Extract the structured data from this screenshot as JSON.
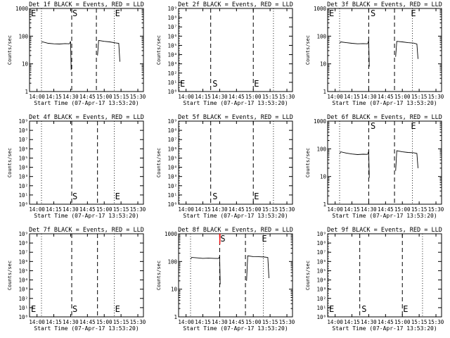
{
  "colors": {
    "events": "#000000",
    "lld": "#ff0000",
    "background": "#ffffff"
  },
  "chart_data": [
    {
      "type": "line",
      "title": "Det 1f BLACK = Events, RED = LLD",
      "xlabel": "Start Time (07-Apr-17 13:53:20)",
      "ylabel": "Counts/sec",
      "xlim": [
        "13:53:20",
        "15:35:00"
      ],
      "x_ticks": [
        "14:00",
        "14:15",
        "14:30",
        "14:45",
        "15:00",
        "15:15",
        "15:30"
      ],
      "scale": "log",
      "ylim": [
        1,
        1000
      ],
      "y_ticks": [
        "1",
        "10",
        "100",
        "1000"
      ],
      "dotted_lines": [
        "14:04",
        "15:09"
      ],
      "dashed_lines": [
        "14:31",
        "14:53"
      ],
      "markers": [
        {
          "label": "E",
          "time": "13:54",
          "level": 0.95
        },
        {
          "label": "S",
          "time": "14:31",
          "level": 0.95
        },
        {
          "label": "E",
          "time": "15:09",
          "level": 0.95
        }
      ],
      "series": [
        {
          "type": "events",
          "segments": [
            [
              [
                "14:04",
                60
              ],
              [
                "14:05",
                62
              ],
              [
                "14:10",
                55
              ],
              [
                "14:15",
                53
              ],
              [
                "14:20",
                52
              ],
              [
                "14:25",
                54
              ],
              [
                "14:29",
                53
              ],
              [
                "14:30",
                65
              ],
              [
                "14:30:30",
                6
              ]
            ],
            [
              [
                "14:54",
                20
              ],
              [
                "14:55",
                70
              ],
              [
                "15:00",
                65
              ],
              [
                "15:05",
                62
              ],
              [
                "15:10",
                57
              ],
              [
                "15:13",
                55
              ],
              [
                "15:14",
                12
              ]
            ]
          ]
        }
      ]
    },
    {
      "type": "line",
      "title": "Det 2f BLACK = Events, RED = LLD",
      "xlabel": "Start Time (07-Apr-17 13:53:20)",
      "ylabel": "Counts/sec",
      "xlim": [
        "13:53:20",
        "15:35:00"
      ],
      "x_ticks": [
        "14:00",
        "14:15",
        "14:30",
        "14:45",
        "15:00",
        "15:15",
        "15:30"
      ],
      "scale": "log",
      "ylim": [
        1,
        1000000000
      ],
      "y_ticks": [
        "10⁰",
        "10¹",
        "10²",
        "10³",
        "10⁴",
        "10⁵",
        "10⁶",
        "10⁷",
        "10⁸",
        "10⁹"
      ],
      "dotted_lines": [
        "13:54",
        "15:18"
      ],
      "dashed_lines": [
        "14:22",
        "15:00"
      ],
      "markers": [
        {
          "label": "E",
          "time": "13:54",
          "level": 0.1
        },
        {
          "label": "S",
          "time": "14:23",
          "level": 0.1
        },
        {
          "label": "E",
          "time": "15:00",
          "level": 0.1
        }
      ],
      "series": []
    },
    {
      "type": "line",
      "title": "Det 3f BLACK = Events, RED = LLD",
      "xlabel": "Start Time (07-Apr-17 13:53:20)",
      "ylabel": "Counts/sec",
      "xlim": [
        "13:53:20",
        "15:35:00"
      ],
      "x_ticks": [
        "14:00",
        "14:15",
        "14:30",
        "14:45",
        "15:00",
        "15:15",
        "15:30"
      ],
      "scale": "log",
      "ylim": [
        1,
        1000
      ],
      "y_ticks": [
        "1",
        "10",
        "100",
        "1000"
      ],
      "dotted_lines": [
        "14:04",
        "15:09"
      ],
      "dashed_lines": [
        "14:30",
        "14:53"
      ],
      "markers": [
        {
          "label": "E",
          "time": "13:54",
          "level": 0.95
        },
        {
          "label": "S",
          "time": "14:31",
          "level": 0.95
        },
        {
          "label": "E",
          "time": "15:07",
          "level": 0.95
        }
      ],
      "series": [
        {
          "type": "events",
          "segments": [
            [
              [
                "14:04",
                55
              ],
              [
                "14:05",
                62
              ],
              [
                "14:10",
                58
              ],
              [
                "14:15",
                55
              ],
              [
                "14:20",
                53
              ],
              [
                "14:25",
                54
              ],
              [
                "14:29",
                53
              ],
              [
                "14:30",
                68
              ],
              [
                "14:30:30",
                8
              ]
            ],
            [
              [
                "14:54",
                18
              ],
              [
                "14:55",
                65
              ],
              [
                "15:00",
                62
              ],
              [
                "15:05",
                58
              ],
              [
                "15:10",
                56
              ],
              [
                "15:13",
                52
              ],
              [
                "15:14",
                15
              ]
            ]
          ]
        }
      ]
    },
    {
      "type": "line",
      "title": "Det 4f BLACK = Events, RED = LLD",
      "xlabel": "Start Time (07-Apr-17 13:53:20)",
      "ylabel": "Counts/sec",
      "xlim": [
        "13:53:20",
        "15:35:00"
      ],
      "x_ticks": [
        "14:00",
        "14:15",
        "14:30",
        "14:45",
        "15:00",
        "15:15",
        "15:30"
      ],
      "scale": "log",
      "ylim": [
        1,
        1000000000
      ],
      "y_ticks": [
        "10⁰",
        "10¹",
        "10²",
        "10³",
        "10⁴",
        "10⁵",
        "10⁶",
        "10⁷",
        "10⁸",
        "10⁹"
      ],
      "dotted_lines": [
        "14:04",
        "15:09"
      ],
      "dashed_lines": [
        "14:31",
        "14:54"
      ],
      "markers": [
        {
          "label": "S",
          "time": "14:31",
          "level": 0.1
        },
        {
          "label": "E",
          "time": "15:09",
          "level": 0.1
        }
      ],
      "series": []
    },
    {
      "type": "line",
      "title": "Det 5f BLACK = Events, RED = LLD",
      "xlabel": "Start Time (07-Apr-17 13:53:20)",
      "ylabel": "Counts/sec",
      "xlim": [
        "13:53:20",
        "15:35:00"
      ],
      "x_ticks": [
        "14:00",
        "14:15",
        "14:30",
        "14:45",
        "15:00",
        "15:15",
        "15:30"
      ],
      "scale": "log",
      "ylim": [
        1,
        1000000000
      ],
      "y_ticks": [
        "10⁰",
        "10¹",
        "10²",
        "10³",
        "10⁴",
        "10⁵",
        "10⁶",
        "10⁷",
        "10⁸",
        "10⁹"
      ],
      "dotted_lines": [
        "13:54",
        "15:18"
      ],
      "dashed_lines": [
        "14:22",
        "15:00"
      ],
      "markers": [
        {
          "label": "S",
          "time": "14:23",
          "level": 0.1
        },
        {
          "label": "E",
          "time": "15:00",
          "level": 0.1
        }
      ],
      "series": []
    },
    {
      "type": "line",
      "title": "Det 6f BLACK = Events, RED = LLD",
      "xlabel": "Start Time (07-Apr-17 13:53:20)",
      "ylabel": "Counts/sec",
      "xlim": [
        "13:53:20",
        "15:35:00"
      ],
      "x_ticks": [
        "14:00",
        "14:15",
        "14:30",
        "14:45",
        "15:00",
        "15:15",
        "15:30"
      ],
      "scale": "log",
      "ylim": [
        1,
        1000
      ],
      "y_ticks": [
        "1",
        "10",
        "100",
        "1000"
      ],
      "dotted_lines": [
        "14:04",
        "15:09"
      ],
      "dashed_lines": [
        "14:30",
        "14:53"
      ],
      "markers": [
        {
          "label": "S",
          "time": "14:31",
          "level": 0.95
        },
        {
          "label": "E",
          "time": "15:07",
          "level": 0.95
        }
      ],
      "series": [
        {
          "type": "events",
          "segments": [
            [
              [
                "14:04",
                65
              ],
              [
                "14:05",
                78
              ],
              [
                "14:10",
                70
              ],
              [
                "14:15",
                65
              ],
              [
                "14:20",
                62
              ],
              [
                "14:25",
                64
              ],
              [
                "14:29",
                63
              ],
              [
                "14:30",
                80
              ],
              [
                "14:30:30",
                9
              ]
            ],
            [
              [
                "14:54",
                16
              ],
              [
                "14:55",
                85
              ],
              [
                "15:00",
                78
              ],
              [
                "15:05",
                74
              ],
              [
                "15:10",
                72
              ],
              [
                "15:13",
                68
              ],
              [
                "15:14",
                20
              ]
            ]
          ]
        }
      ]
    },
    {
      "type": "line",
      "title": "Det 7f BLACK = Events, RED = LLD",
      "xlabel": "Start Time (07-Apr-17 13:53:20)",
      "ylabel": "Counts/sec",
      "xlim": [
        "13:53:20",
        "15:35:00"
      ],
      "x_ticks": [
        "14:00",
        "14:15",
        "14:30",
        "14:45",
        "15:00",
        "15:15",
        "15:30"
      ],
      "scale": "log",
      "ylim": [
        1,
        1000000000
      ],
      "y_ticks": [
        "10⁰",
        "10¹",
        "10²",
        "10³",
        "10⁴",
        "10⁵",
        "10⁶",
        "10⁷",
        "10⁸",
        "10⁹"
      ],
      "dotted_lines": [
        "14:04",
        "15:09"
      ],
      "dashed_lines": [
        "14:31",
        "14:54"
      ],
      "markers": [
        {
          "label": "E",
          "time": "13:54",
          "level": 0.1
        },
        {
          "label": "S",
          "time": "14:31",
          "level": 0.1
        },
        {
          "label": "E",
          "time": "15:09",
          "level": 0.1
        }
      ],
      "series": []
    },
    {
      "type": "line",
      "title": "Det 8f BLACK = Events, RED = LLD",
      "xlabel": "Start Time (07-Apr-17 13:53:20)",
      "ylabel": "Counts/sec",
      "xlim": [
        "13:53:20",
        "15:35:00"
      ],
      "x_ticks": [
        "14:00",
        "14:15",
        "14:30",
        "14:45",
        "15:00",
        "15:15",
        "15:30"
      ],
      "scale": "log",
      "ylim": [
        1,
        1000
      ],
      "y_ticks": [
        "1",
        "10",
        "100",
        "1000"
      ],
      "dotted_lines": [
        "14:04",
        "15:09"
      ],
      "dashed_lines": [
        "14:30",
        "14:53"
      ],
      "markers": [
        {
          "label": "S",
          "time": "14:30",
          "level": 0.95
        },
        {
          "label": "E",
          "time": "15:07",
          "level": 0.95
        }
      ],
      "series": [
        {
          "type": "events",
          "segments": [
            [
              [
                "14:04",
                120
              ],
              [
                "14:05",
                140
              ],
              [
                "14:10",
                135
              ],
              [
                "14:15",
                130
              ],
              [
                "14:20",
                132
              ],
              [
                "14:25",
                130
              ],
              [
                "14:29",
                128
              ],
              [
                "14:30",
                150
              ],
              [
                "14:30:30",
                15
              ]
            ],
            [
              [
                "14:54",
                20
              ],
              [
                "14:55",
                160
              ],
              [
                "15:00",
                150
              ],
              [
                "15:05",
                148
              ],
              [
                "15:10",
                145
              ],
              [
                "15:13",
                140
              ],
              [
                "15:14",
                25
              ]
            ]
          ]
        },
        {
          "type": "lld",
          "segments": [
            [
              [
                "14:30",
                1000
              ],
              [
                "14:30:10",
                420
              ],
              [
                "14:30:20",
                1000
              ]
            ]
          ]
        }
      ]
    },
    {
      "type": "line",
      "title": "Det 9f BLACK = Events, RED = LLD",
      "xlabel": "Start Time (07-Apr-17 13:53:20)",
      "ylabel": "Counts/sec",
      "xlim": [
        "13:53:20",
        "15:35:00"
      ],
      "x_ticks": [
        "14:00",
        "14:15",
        "14:30",
        "14:45",
        "15:00",
        "15:15",
        "15:30"
      ],
      "scale": "log",
      "ylim": [
        1,
        1000000000
      ],
      "y_ticks": [
        "10⁰",
        "10¹",
        "10²",
        "10³",
        "10⁴",
        "10⁵",
        "10⁶",
        "10⁷",
        "10⁸",
        "10⁹"
      ],
      "dotted_lines": [
        "13:54",
        "15:18"
      ],
      "dashed_lines": [
        "14:22",
        "15:00"
      ],
      "markers": [
        {
          "label": "E",
          "time": "13:54",
          "level": 0.1
        },
        {
          "label": "S",
          "time": "14:23",
          "level": 0.1
        },
        {
          "label": "E",
          "time": "15:00",
          "level": 0.1
        }
      ],
      "series": []
    }
  ]
}
